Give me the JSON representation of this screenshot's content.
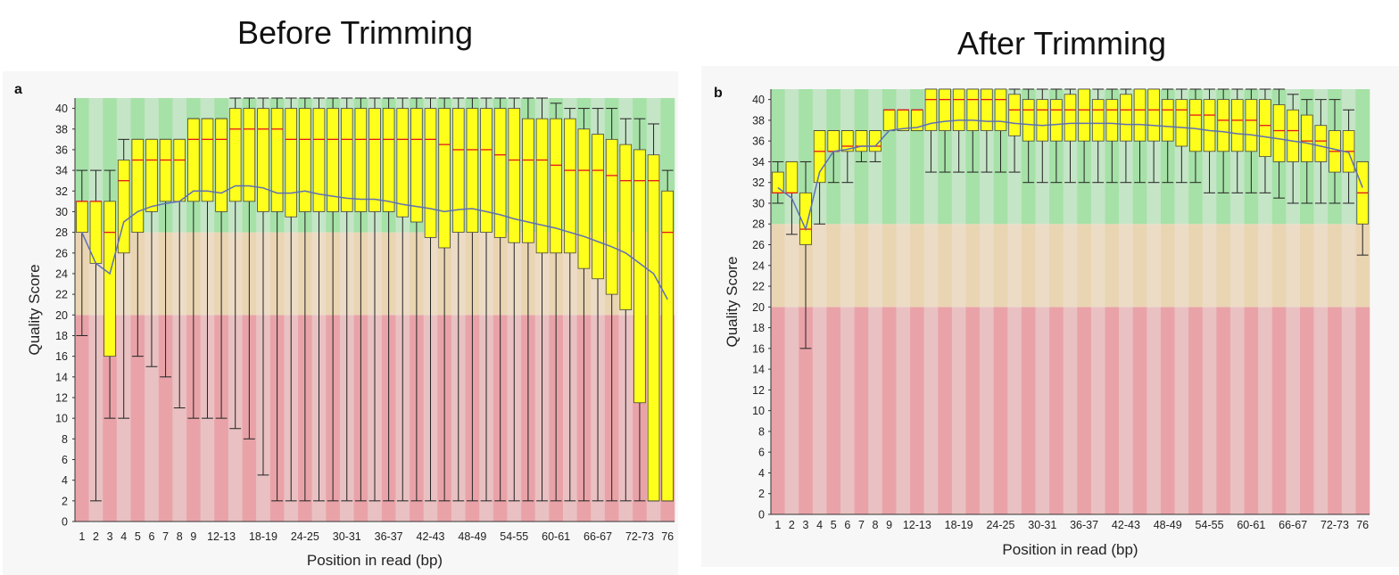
{
  "titles": {
    "before": "Before Trimming",
    "after": "After Trimming"
  },
  "chart_data": [
    {
      "type": "box",
      "panel_label": "a",
      "title": "Before Trimming",
      "xlabel": "Position in read (bp)",
      "ylabel": "Quality Score",
      "ylim": [
        0,
        41
      ],
      "yticks": [
        0,
        2,
        4,
        6,
        8,
        10,
        12,
        14,
        16,
        18,
        20,
        22,
        24,
        26,
        28,
        30,
        32,
        34,
        36,
        38,
        40
      ],
      "zones": [
        {
          "name": "poor",
          "from": 0,
          "to": 20,
          "colors": [
            "#e9a3a8",
            "#e9c1c2"
          ]
        },
        {
          "name": "reasonable",
          "from": 20,
          "to": 28,
          "colors": [
            "#ead5b3",
            "#ecdcc6"
          ]
        },
        {
          "name": "good",
          "from": 28,
          "to": 41,
          "colors": [
            "#a6e1a7",
            "#c5e5c7"
          ]
        }
      ],
      "categories": [
        "1",
        "2",
        "3",
        "4",
        "5",
        "6",
        "7",
        "8",
        "9",
        "10-11",
        "12-13",
        "14-15",
        "16-17",
        "18-19",
        "20-21",
        "22-23",
        "24-25",
        "26-27",
        "28-29",
        "30-31",
        "32-33",
        "34-35",
        "36-37",
        "38-39",
        "40-41",
        "42-43",
        "44-45",
        "46-47",
        "48-49",
        "50-51",
        "52-53",
        "54-55",
        "56-57",
        "58-59",
        "60-61",
        "62-63",
        "64-65",
        "66-67",
        "68-69",
        "70-71",
        "72-73",
        "74-75",
        "76"
      ],
      "xtick_labels": [
        "1",
        "2",
        "3",
        "4",
        "5",
        "6",
        "7",
        "8",
        "9",
        "12-13",
        "18-19",
        "24-25",
        "30-31",
        "36-37",
        "42-43",
        "48-49",
        "54-55",
        "60-61",
        "66-67",
        "72-73",
        "76"
      ],
      "boxes": {
        "lower_whisker": [
          18,
          2,
          10,
          10,
          16,
          15,
          14,
          11,
          10,
          10,
          10,
          9,
          8,
          4.5,
          2,
          2,
          2,
          2,
          2,
          2,
          2,
          2,
          2,
          2,
          2,
          2,
          2,
          2,
          2,
          2,
          2,
          2,
          2,
          2,
          2,
          2,
          2,
          2,
          2,
          2,
          2,
          2,
          2
        ],
        "q1": [
          28,
          25,
          16,
          26,
          28,
          30,
          31,
          31,
          31,
          31,
          30,
          31,
          31,
          30,
          30,
          29.5,
          30,
          30,
          30,
          30,
          30,
          30,
          30,
          29.5,
          29,
          27.5,
          26.5,
          28,
          28,
          28,
          27.5,
          27,
          27,
          26,
          26,
          26,
          24.5,
          23.5,
          22,
          20.5,
          11.5,
          2,
          2
        ],
        "median": [
          31,
          31,
          28,
          33,
          35,
          35,
          35,
          35,
          37,
          37,
          37,
          38,
          38,
          38,
          38,
          37,
          37,
          37,
          37,
          37,
          37,
          37,
          37,
          37,
          37,
          37,
          36.5,
          36,
          36,
          36,
          35.5,
          35,
          35,
          35,
          34.5,
          34,
          34,
          34,
          33.5,
          33,
          33,
          33,
          28
        ],
        "q3": [
          31,
          31,
          31,
          35,
          37,
          37,
          37,
          37,
          39,
          39,
          39,
          40,
          40,
          40,
          40,
          40,
          40,
          40,
          40,
          40,
          40,
          40,
          40,
          40,
          40,
          40,
          40,
          40,
          40,
          40,
          40,
          40,
          39,
          39,
          39,
          39,
          38,
          37.5,
          37,
          36.5,
          36,
          35.5,
          32
        ],
        "upper_whisker": [
          34,
          34,
          34,
          37,
          37,
          37,
          37,
          37,
          39,
          39,
          39,
          41,
          41,
          41,
          41,
          41,
          41,
          41,
          41,
          41,
          41,
          41,
          41,
          41,
          41,
          41,
          41,
          41,
          41,
          41,
          41,
          41,
          41,
          41,
          40.5,
          40,
          40,
          40,
          40,
          39,
          39,
          38.5,
          34
        ],
        "mean": [
          28,
          25,
          24,
          29,
          30,
          30.5,
          30.8,
          31,
          32,
          32,
          31.8,
          32.5,
          32.5,
          32.3,
          31.8,
          31.8,
          32,
          31.7,
          31.5,
          31.3,
          31.2,
          31.2,
          31,
          30.7,
          30.5,
          30.3,
          30,
          30.2,
          30.3,
          30,
          29.7,
          29.3,
          29,
          28.7,
          28.4,
          28,
          27.6,
          27.1,
          26.6,
          26,
          25,
          24,
          21.5
        ]
      }
    },
    {
      "type": "box",
      "panel_label": "b",
      "title": "After Trimming",
      "xlabel": "Position in read (bp)",
      "ylabel": "Quality Score",
      "ylim": [
        0,
        41
      ],
      "yticks": [
        0,
        2,
        4,
        6,
        8,
        10,
        12,
        14,
        16,
        18,
        20,
        22,
        24,
        26,
        28,
        30,
        32,
        34,
        36,
        38,
        40
      ],
      "zones": [
        {
          "name": "poor",
          "from": 0,
          "to": 20,
          "colors": [
            "#e9a3a8",
            "#e9c1c2"
          ]
        },
        {
          "name": "reasonable",
          "from": 20,
          "to": 28,
          "colors": [
            "#ead5b3",
            "#ecdcc6"
          ]
        },
        {
          "name": "good",
          "from": 28,
          "to": 41,
          "colors": [
            "#a6e1a7",
            "#c5e5c7"
          ]
        }
      ],
      "categories": [
        "1",
        "2",
        "3",
        "4",
        "5",
        "6",
        "7",
        "8",
        "9",
        "10-11",
        "12-13",
        "14-15",
        "16-17",
        "18-19",
        "20-21",
        "22-23",
        "24-25",
        "26-27",
        "28-29",
        "30-31",
        "32-33",
        "34-35",
        "36-37",
        "38-39",
        "40-41",
        "42-43",
        "44-45",
        "46-47",
        "48-49",
        "50-51",
        "52-53",
        "54-55",
        "56-57",
        "58-59",
        "60-61",
        "62-63",
        "64-65",
        "66-67",
        "68-69",
        "70-71",
        "72-73",
        "74-75",
        "76"
      ],
      "xtick_labels": [
        "1",
        "2",
        "3",
        "4",
        "5",
        "6",
        "7",
        "8",
        "9",
        "12-13",
        "18-19",
        "24-25",
        "30-31",
        "36-37",
        "42-43",
        "48-49",
        "54-55",
        "60-61",
        "66-67",
        "72-73",
        "76"
      ],
      "boxes": {
        "lower_whisker": [
          30,
          27,
          16,
          28,
          32,
          32,
          34,
          34,
          37,
          37,
          37,
          33,
          33,
          33,
          33,
          33,
          33,
          33,
          32,
          32,
          32,
          32,
          32,
          32,
          32,
          32,
          32,
          32,
          32,
          32,
          32,
          31,
          31,
          31,
          31,
          31,
          30.5,
          30,
          30,
          30,
          30,
          30,
          25
        ],
        "q1": [
          31,
          31,
          26,
          32,
          35,
          35,
          35,
          35,
          37,
          37,
          37,
          37,
          37,
          37,
          37,
          37,
          37,
          36.5,
          36,
          36,
          36,
          36,
          36,
          36,
          36,
          36,
          36,
          36,
          36,
          35.5,
          35,
          35,
          35,
          35,
          35,
          34.5,
          34,
          34,
          34,
          34,
          33,
          33,
          28
        ],
        "median": [
          31,
          31,
          27.5,
          35,
          35,
          35.5,
          35.5,
          35.5,
          39,
          39,
          39,
          40,
          40,
          40,
          40,
          40,
          40,
          39,
          39,
          39,
          39,
          39,
          39,
          39,
          39,
          39,
          39,
          39,
          39,
          39,
          38.5,
          38.5,
          38,
          38,
          38,
          37.5,
          37,
          37,
          36,
          36,
          35,
          35,
          31
        ],
        "q3": [
          33,
          34,
          31,
          37,
          37,
          37,
          37,
          37,
          39,
          39,
          39,
          41,
          41,
          41,
          41,
          41,
          41,
          40.5,
          40,
          40,
          40,
          40.5,
          41,
          40,
          40,
          40.5,
          41,
          41,
          40,
          40,
          40,
          40,
          40,
          40,
          40,
          40,
          39.5,
          39,
          38.5,
          37.5,
          37,
          37,
          34
        ],
        "upper_whisker": [
          34,
          34,
          34,
          37,
          37,
          37,
          37,
          37,
          39,
          39,
          39,
          41,
          41,
          41,
          41,
          41,
          41,
          41,
          41,
          41,
          41,
          41,
          41,
          41,
          41,
          41,
          41,
          41,
          41,
          41,
          41,
          41,
          41,
          41,
          41,
          41,
          41,
          40.5,
          40,
          40,
          40,
          39,
          34
        ],
        "mean": [
          31.5,
          30.5,
          27.5,
          33,
          35,
          35.2,
          35.5,
          35.5,
          37,
          37.2,
          37.3,
          37.7,
          37.9,
          38,
          38,
          37.9,
          37.9,
          37.7,
          37.6,
          37.5,
          37.6,
          37.7,
          37.7,
          37.7,
          37.7,
          37.6,
          37.6,
          37.5,
          37.4,
          37.3,
          37.2,
          37,
          36.9,
          36.7,
          36.6,
          36.4,
          36.2,
          36,
          35.8,
          35.5,
          35.2,
          34.9,
          31.5
        ]
      }
    }
  ]
}
